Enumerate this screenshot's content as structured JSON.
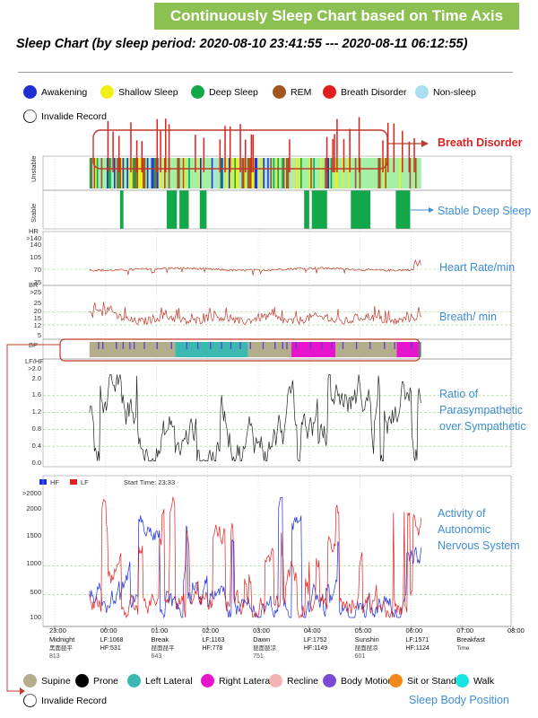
{
  "banner": "Continuously Sleep Chart based on Time Axis",
  "subtitle": "Sleep Chart (by sleep period: 2020-08-10 23:41:55 --- 2020-08-11 06:12:55)",
  "colors": {
    "awakening": "#1f2fd0",
    "shallow": "#f2ee1a",
    "deep": "#12a84a",
    "rem": "#a0561c",
    "breath": "#e01e1e",
    "nonsleep": "#a9dff0",
    "light": "#a6f0a6",
    "supine": "#b3ad8c",
    "left": "#3bb8b0",
    "right": "#e614cc"
  },
  "stage_legend": [
    {
      "label": "Awakening",
      "icon": "blue-circle-icon",
      "color": "#1f2fd0"
    },
    {
      "label": "Shallow Sleep",
      "icon": "yellow-circle-icon",
      "color": "#f2ee1a"
    },
    {
      "label": "Deep Sleep",
      "icon": "green-circle-icon",
      "color": "#12a84a"
    },
    {
      "label": "REM",
      "icon": "brown-circle-icon",
      "color": "#a0561c"
    },
    {
      "label": "Breath Disorder",
      "icon": "red-circle-icon",
      "color": "#e01e1e"
    },
    {
      "label": "Non-sleep",
      "icon": "lightblue-circle-icon",
      "color": "#a9dff0"
    },
    {
      "label": "Invalide Record",
      "icon": "hollow-circle-icon",
      "color": ""
    }
  ],
  "position_legend": [
    {
      "label": "Supine",
      "icon": "khaki-circle-icon",
      "color": "#b3ad8c"
    },
    {
      "label": "Prone",
      "icon": "black-circle-icon",
      "color": "#000000"
    },
    {
      "label": "Left Lateral",
      "icon": "teal-circle-icon",
      "color": "#3bb8b0"
    },
    {
      "label": "Right Lateral",
      "icon": "magenta-circle-icon",
      "color": "#e614cc"
    },
    {
      "label": "Recline",
      "icon": "pink-circle-icon",
      "color": "#f2b3b3"
    },
    {
      "label": "Body Motion",
      "icon": "purple-circle-icon",
      "color": "#7a4ad6"
    },
    {
      "label": "Sit or Stand",
      "icon": "orange-circle-icon",
      "color": "#f08a1a"
    },
    {
      "label": "Walk",
      "icon": "cyan-circle-icon",
      "color": "#17e3e3"
    },
    {
      "label": "Invalide Record",
      "icon": "hollow-circle-icon",
      "color": ""
    }
  ],
  "annotations": {
    "breath_disorder": "Breath Disorder",
    "stable_deep": "Stable Deep Sleep",
    "heart_rate": "Heart Rate/min",
    "breath_rate": "Breath/ min",
    "ratio": [
      "Ratio of",
      "Parasympathetic",
      "over Sympathetic"
    ],
    "activity": [
      "Activity of",
      "Autonomic",
      "Nervous System"
    ],
    "body_position": "Sleep Body Position"
  },
  "chart_data": [
    {
      "type": "area",
      "panel": "sleep-stage",
      "row_labels": [
        "Unstable",
        "Stable"
      ],
      "time_range": [
        "23:00",
        "08:00"
      ],
      "sleep_period": [
        "23:41:55",
        "06:12:55"
      ],
      "stable_deep_sleep_intervals": [
        [
          "00:17",
          "00:21"
        ],
        [
          "01:12",
          "01:24"
        ],
        [
          "01:27",
          "01:38"
        ],
        [
          "01:51",
          "01:59"
        ],
        [
          "03:54",
          "04:00"
        ],
        [
          "04:03",
          "04:21"
        ],
        [
          "04:49",
          "05:12"
        ],
        [
          "05:42",
          "05:59"
        ]
      ],
      "breath_disorder_times": [
        "00:02",
        "00:08",
        "00:15",
        "00:29",
        "00:36",
        "00:42",
        "01:00",
        "01:04",
        "01:10",
        "01:14",
        "01:45",
        "01:55",
        "02:14",
        "02:20",
        "02:26",
        "02:38",
        "02:44",
        "02:51",
        "02:53",
        "03:36",
        "04:20",
        "04:27",
        "04:29",
        "04:32",
        "04:40",
        "04:47",
        "04:58",
        "05:26",
        "05:32",
        "05:39",
        "05:49",
        "05:57",
        "06:03"
      ]
    },
    {
      "type": "line",
      "name": "HR",
      "ylabel": "HR",
      "y_ticks": [
        ">140",
        "140",
        "105",
        "70",
        "35"
      ],
      "ylim": [
        35,
        140
      ],
      "guide_lines": [
        70
      ],
      "typical_range": [
        60,
        75
      ]
    },
    {
      "type": "line",
      "name": "BR",
      "ylabel": "BR",
      "y_ticks": [
        ">25",
        "25",
        "20",
        "15",
        "12",
        "5"
      ],
      "ylim": [
        5,
        25
      ],
      "guide_lines": [
        20,
        12
      ],
      "typical_range": [
        12,
        20
      ]
    },
    {
      "type": "area",
      "name": "BP",
      "ylabel": "BP",
      "position_segments": [
        {
          "from": "23:41",
          "to": "01:22",
          "position": "Supine"
        },
        {
          "from": "01:22",
          "to": "02:48",
          "position": "Left Lateral"
        },
        {
          "from": "02:48",
          "to": "03:39",
          "position": "Supine"
        },
        {
          "from": "03:39",
          "to": "04:31",
          "position": "Right Lateral"
        },
        {
          "from": "04:31",
          "to": "05:43",
          "position": "Supine"
        },
        {
          "from": "05:43",
          "to": "06:09",
          "position": "Right Lateral"
        },
        {
          "from": "06:09",
          "to": "06:12",
          "position": "Left Lateral"
        }
      ],
      "body_motion_times": [
        "23:51",
        "23:56",
        "00:12",
        "00:20",
        "00:28",
        "00:33",
        "00:45",
        "01:00",
        "01:17",
        "01:35",
        "01:48",
        "02:03",
        "02:16",
        "02:27",
        "02:38",
        "02:50",
        "03:05",
        "03:19",
        "03:28",
        "03:33",
        "03:44",
        "04:01",
        "04:14",
        "04:26",
        "04:39",
        "04:55",
        "05:11",
        "05:28",
        "05:40",
        "06:00"
      ]
    },
    {
      "type": "line",
      "name": "LF/HF",
      "ylabel": "LF/HF",
      "y_ticks": [
        ">2.0",
        "2.0",
        "1.6",
        "1.2",
        "0.8",
        "0.4",
        "0.0"
      ],
      "ylim": [
        0,
        2.0
      ],
      "guide_lines": [
        1.6,
        1.2,
        0.8,
        0.4
      ],
      "typical_range": [
        0.6,
        1.4
      ]
    },
    {
      "type": "line",
      "title": "Start Time: 23:33",
      "series": [
        {
          "name": "HF",
          "color": "#1a2ee0"
        },
        {
          "name": "LF",
          "color": "#e0201e"
        }
      ],
      "y_ticks": [
        ">2000",
        "2000",
        "1500",
        "1000",
        "500",
        "100"
      ],
      "ylim": [
        100,
        2000
      ],
      "guide_lines": [
        1000,
        500
      ],
      "x_ticks": [
        {
          "time": "23:00",
          "label": "Midnight",
          "cn": "黑面琵平",
          "stat1": "813",
          "stat2": ""
        },
        {
          "time": "00:00",
          "label": "",
          "cn": "",
          "stat1": "LF:1068",
          "stat2": "HF:531"
        },
        {
          "time": "01:00",
          "label": "Break",
          "cn": "琵面琵平",
          "stat1": "643",
          "stat2": ""
        },
        {
          "time": "02:00",
          "label": "",
          "cn": "",
          "stat1": "LF:1163",
          "stat2": "HF:778"
        },
        {
          "time": "03:00",
          "label": "Dawn",
          "cn": "琵面琵凉",
          "stat1": "751",
          "stat2": ""
        },
        {
          "time": "04:00",
          "label": "",
          "cn": "",
          "stat1": "LF:1752",
          "stat2": "HF:1149"
        },
        {
          "time": "05:00",
          "label": "Sunshin",
          "cn": "琵面琵凉",
          "stat1": "601",
          "stat2": ""
        },
        {
          "time": "06:00",
          "label": "",
          "cn": "",
          "stat1": "LF:1571",
          "stat2": "HF:1124"
        },
        {
          "time": "07:00",
          "label": "Breakfast",
          "cn": "Time",
          "stat1": "",
          "stat2": ""
        },
        {
          "time": "08:00",
          "label": "",
          "cn": "",
          "stat1": "",
          "stat2": ""
        }
      ]
    }
  ]
}
